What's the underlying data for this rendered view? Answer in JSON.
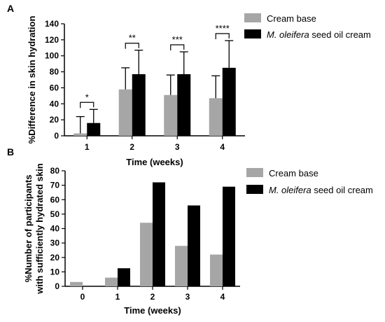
{
  "chart_data": [
    {
      "panel_label": "A",
      "type": "bar",
      "ylabel": "%Difference in skin hydration",
      "xlabel": "Time (weeks)",
      "categories": [
        "1",
        "2",
        "3",
        "4"
      ],
      "ylim": [
        0,
        140
      ],
      "yticks": [
        "0",
        "20",
        "40",
        "60",
        "80",
        "100",
        "120",
        "140"
      ],
      "series": [
        {
          "name": "Cream base",
          "name_italic": "",
          "name_rest": "Cream base",
          "color": "#a6a6a6",
          "values": [
            3,
            58,
            51,
            47
          ],
          "errors": [
            21,
            27,
            25,
            28
          ]
        },
        {
          "name": "M. oleifera seed oil cream",
          "name_italic": "M. oleifera",
          "name_rest": " seed oil cream",
          "color": "#000000",
          "values": [
            16,
            77,
            77,
            85
          ],
          "errors": [
            17,
            30,
            28,
            34
          ]
        }
      ],
      "significance": [
        "*",
        "**",
        "***",
        "****"
      ],
      "legend_position": "right"
    },
    {
      "panel_label": "B",
      "type": "bar",
      "ylabel_line1": "%Number of participants",
      "ylabel_line2": "with sufficiently hydrated skin",
      "xlabel": "Time (weeks)",
      "categories": [
        "0",
        "1",
        "2",
        "3",
        "4"
      ],
      "ylim": [
        0,
        80
      ],
      "yticks": [
        "0",
        "10",
        "20",
        "30",
        "40",
        "50",
        "60",
        "70",
        "80"
      ],
      "series": [
        {
          "name": "Cream base",
          "name_italic": "",
          "name_rest": "Cream base",
          "color": "#a6a6a6",
          "values": [
            3,
            6,
            44,
            28,
            22
          ]
        },
        {
          "name": "M. oleifera seed oil cream",
          "name_italic": "M. oleifera",
          "name_rest": " seed oil cream",
          "color": "#000000",
          "values": [
            0,
            12.5,
            72,
            56,
            69
          ]
        }
      ],
      "legend_position": "right"
    }
  ]
}
